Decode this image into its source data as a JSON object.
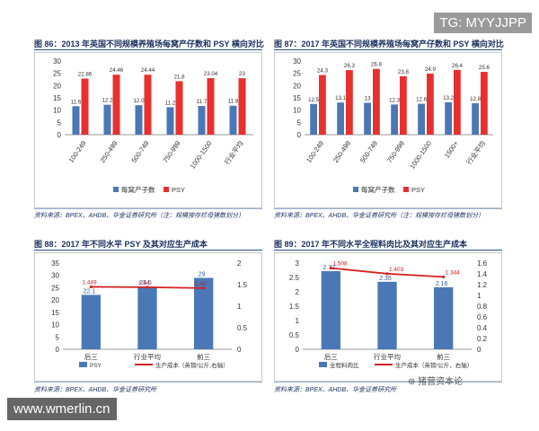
{
  "watermark_tag": "TG: MYYJJPP",
  "site_label": "www.wmerlin.cn",
  "wechat_mark": "猪营资本论",
  "colors": {
    "bar_blue": "#4a78b6",
    "bar_red": "#e8302e",
    "line_red": "#d62222",
    "title_navy": "#1a2f5c"
  },
  "panels": {
    "p86": {
      "title": "图 86：2013 年英国不同规模养殖场每窝产仔数和 PSY 横向对比",
      "source": "资料来源：BPEX、AHDB、华金证券研究所（注：规模按存栏母猪数划分）",
      "legend": [
        "每窝产子数",
        "PSY"
      ]
    },
    "p87": {
      "title": "图 87：2017 年英国不同规模养殖场每窝产仔数和 PSY 横向对比",
      "source": "资料来源：BPEX、AHDB、华金证券研究所（注：规模按存栏母猪数划分）",
      "legend": [
        "每窝产子数",
        "PSY"
      ]
    },
    "p88": {
      "title": "图 88：2017 年不同水平 PSY 及其对应生产成本",
      "source": "资料来源：BPEX、AHDB、华金证券研究所",
      "legend": [
        "PSY",
        "生产成本（英镑/公斤,右轴）"
      ]
    },
    "p89": {
      "title": "图 89：2017 年不同水平全程料肉比及其对应生产成本",
      "source": "资料来源：BPEX、AHDB、华金证券研究所",
      "legend": [
        "全程料肉比",
        "生产成本（英镑/公斤，右轴）"
      ]
    }
  },
  "chart_data": [
    {
      "id": "p86",
      "type": "bar",
      "title": "2013 年英国不同规模养殖场每窝产仔数和 PSY 横向对比",
      "categories": [
        "100-249",
        "250-499",
        "500-749",
        "750-999",
        "1000-1500",
        "行业平均"
      ],
      "series": [
        {
          "name": "每窝产子数",
          "values": [
            11.6,
            12.2,
            12.0,
            11.2,
            11.7,
            11.8
          ],
          "labels": [
            "11.6",
            "12.2",
            "12.0",
            "11.2",
            "11.7",
            "11.8"
          ]
        },
        {
          "name": "PSY",
          "values": [
            22.86,
            24.46,
            24.44,
            21.8,
            23.04,
            23
          ],
          "labels": [
            "22.86",
            "24.46",
            "24.44",
            "21.8",
            "23.04",
            "23"
          ]
        }
      ],
      "ylim": [
        0,
        30
      ],
      "yticks": [
        0,
        5,
        10,
        15,
        20,
        25,
        30
      ]
    },
    {
      "id": "p87",
      "type": "bar",
      "title": "2017 年英国不同规模养殖场每窝产仔数和 PSY 横向对比",
      "categories": [
        "100-249",
        "250-499",
        "500-749",
        "750-999",
        "1000-1500",
        "1500+",
        "行业平均"
      ],
      "series": [
        {
          "name": "每窝产子数",
          "values": [
            12.5,
            13.1,
            13,
            12.3,
            12.6,
            13.2,
            12.8
          ],
          "labels": [
            "12.5",
            "13.1",
            "13",
            "12.3",
            "12.6",
            "13.2",
            "12.8"
          ]
        },
        {
          "name": "PSY",
          "values": [
            24.3,
            26.3,
            26.8,
            23.8,
            24.9,
            26.4,
            25.6
          ],
          "labels": [
            "24.3",
            "26.3",
            "26.8",
            "23.8",
            "24.9",
            "26.4",
            "25.6"
          ]
        }
      ],
      "ylim": [
        0,
        30
      ],
      "yticks": [
        0,
        5,
        10,
        15,
        20,
        25,
        30
      ]
    },
    {
      "id": "p88",
      "type": "bar",
      "title": "2017 年不同水平 PSY 及其对应生产成本",
      "categories": [
        "后三",
        "行业平均",
        "前三"
      ],
      "bars": {
        "name": "PSY",
        "values": [
          22.1,
          25.5,
          29
        ],
        "labels": [
          "22.1",
          "25.5",
          "29"
        ]
      },
      "line": {
        "name": "生产成本（英镑/公斤,右轴）",
        "values": [
          1.449,
          1.44,
          1.42
        ],
        "labels": [
          "1.449",
          "1.44",
          "1.42"
        ]
      },
      "ylim": [
        0,
        35
      ],
      "yticks": [
        0,
        5,
        10,
        15,
        20,
        25,
        30,
        35
      ],
      "y2lim": [
        0,
        2
      ],
      "y2ticks": [
        "0",
        "0.5",
        "1",
        "1.5",
        "2"
      ]
    },
    {
      "id": "p89",
      "type": "bar",
      "title": "2017 年不同水平全程料肉比及其对应生产成本",
      "categories": [
        "后三",
        "行业平均",
        "前三"
      ],
      "bars": {
        "name": "全程料肉比",
        "values": [
          2.72,
          2.35,
          2.16
        ],
        "labels": [
          "2.72",
          "2.35",
          "2.16"
        ]
      },
      "line": {
        "name": "生产成本（英镑/公斤，右轴）",
        "values": [
          1.508,
          1.403,
          1.344
        ],
        "labels": [
          "1.508",
          "1.403",
          "1.344"
        ]
      },
      "ylim": [
        0,
        3
      ],
      "yticks": [
        "0",
        "0.5",
        "1",
        "1.5",
        "2",
        "2.5",
        "3"
      ],
      "y2lim": [
        0,
        1.6
      ],
      "y2ticks": [
        "0",
        "0.2",
        "0.4",
        "0.6",
        "0.8",
        "1",
        "1.2",
        "1.4",
        "1.6"
      ]
    }
  ]
}
